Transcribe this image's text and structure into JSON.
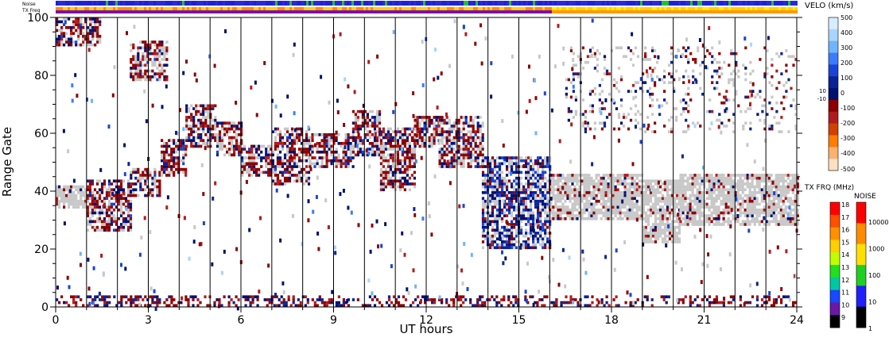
{
  "strips": {
    "noise_label": "Noise",
    "freq_label": "TX Freq",
    "noise_colors": [
      "#2020d8",
      "#2a2ad8",
      "#22c030"
    ],
    "freq_segments": [
      {
        "from": 0,
        "to": 16,
        "colors": [
          "#ffd000",
          "#ff8c00",
          "#7a10b0"
        ]
      },
      {
        "from": 16,
        "to": 24,
        "colors": [
          "#ffd000",
          "#ffee00",
          "#ff9900"
        ]
      }
    ]
  },
  "chart_data": {
    "type": "heatmap",
    "xlabel": "UT hours",
    "ylabel": "Range Gate",
    "xlim": [
      0,
      24
    ],
    "ylim": [
      0,
      100
    ],
    "x_ticks": [
      "0",
      "3",
      "6",
      "9",
      "12",
      "15",
      "18",
      "21",
      "24"
    ],
    "y_ticks": [
      "0",
      "20",
      "40",
      "60",
      "80",
      "100"
    ],
    "hour_gridlines": true,
    "ground_scatter_color": "#c8c8c8",
    "echo_bands": [
      {
        "t_start": 0.0,
        "t_end": 1.0,
        "gate_start": 34,
        "gate_end": 42,
        "class": "ground"
      },
      {
        "t_start": 1.0,
        "t_end": 2.4,
        "gate_start": 26,
        "gate_end": 44,
        "class": "mixed"
      },
      {
        "t_start": 2.4,
        "t_end": 3.4,
        "gate_start": 38,
        "gate_end": 48,
        "class": "mixed"
      },
      {
        "t_start": 3.4,
        "t_end": 4.2,
        "gate_start": 45,
        "gate_end": 58,
        "class": "mixed"
      },
      {
        "t_start": 4.2,
        "t_end": 5.2,
        "gate_start": 55,
        "gate_end": 70,
        "class": "mixed"
      },
      {
        "t_start": 5.2,
        "t_end": 6.0,
        "gate_start": 52,
        "gate_end": 64,
        "class": "mixed"
      },
      {
        "t_start": 6.0,
        "t_end": 7.0,
        "gate_start": 45,
        "gate_end": 56,
        "class": "mixed"
      },
      {
        "t_start": 7.0,
        "t_end": 8.2,
        "gate_start": 42,
        "gate_end": 62,
        "class": "mixed"
      },
      {
        "t_start": 8.2,
        "t_end": 9.6,
        "gate_start": 48,
        "gate_end": 60,
        "class": "mixed"
      },
      {
        "t_start": 9.6,
        "t_end": 10.5,
        "gate_start": 52,
        "gate_end": 68,
        "class": "mixed"
      },
      {
        "t_start": 10.5,
        "t_end": 11.6,
        "gate_start": 40,
        "gate_end": 62,
        "class": "mixed"
      },
      {
        "t_start": 11.6,
        "t_end": 12.4,
        "gate_start": 55,
        "gate_end": 66,
        "class": "mixed"
      },
      {
        "t_start": 12.4,
        "t_end": 13.8,
        "gate_start": 48,
        "gate_end": 66,
        "class": "mixed"
      },
      {
        "t_start": 13.8,
        "t_end": 16.0,
        "gate_start": 20,
        "gate_end": 52,
        "class": "neg"
      },
      {
        "t_start": 16.0,
        "t_end": 19.0,
        "gate_start": 30,
        "gate_end": 46,
        "class": "ground"
      },
      {
        "t_start": 19.0,
        "t_end": 20.2,
        "gate_start": 22,
        "gate_end": 44,
        "class": "ground"
      },
      {
        "t_start": 20.2,
        "t_end": 24.0,
        "gate_start": 28,
        "gate_end": 46,
        "class": "ground"
      },
      {
        "t_start": 0.0,
        "t_end": 24.0,
        "gate_start": 0,
        "gate_end": 4,
        "class": "near"
      },
      {
        "t_start": 0.0,
        "t_end": 1.4,
        "gate_start": 90,
        "gate_end": 100,
        "class": "mixed"
      },
      {
        "t_start": 2.4,
        "t_end": 3.6,
        "gate_start": 78,
        "gate_end": 92,
        "class": "mixed"
      },
      {
        "t_start": 16.5,
        "t_end": 24.0,
        "gate_start": 60,
        "gate_end": 90,
        "class": "sparse"
      }
    ],
    "velocity_scale": {
      "title": "VELO (km/s)",
      "ticks": [
        "500",
        "400",
        "300",
        "200",
        "100",
        "0",
        "10",
        "-10",
        "-100",
        "-200",
        "-300",
        "-400",
        "-500"
      ],
      "colors": [
        "#d6ecff",
        "#a8d4ff",
        "#6eb4ff",
        "#3a7cff",
        "#1a44d8",
        "#0a2296",
        "#001070",
        "#8c0000",
        "#b01c1c",
        "#d44000",
        "#ff7c00",
        "#ffb070",
        "#ffe0c0"
      ]
    },
    "freq_scale": {
      "title": "TX FRQ (MHz)",
      "ticks": [
        "18",
        "17",
        "16",
        "15",
        "14",
        "13",
        "12",
        "11",
        "10",
        "9"
      ],
      "colors": [
        "#ff0000",
        "#ff5000",
        "#ff9000",
        "#ffd000",
        "#c0ff00",
        "#20e020",
        "#00c8a0",
        "#1848ff",
        "#6a18a8",
        "#000000"
      ]
    },
    "noise_scale": {
      "title": "NOISE",
      "ticks": [
        "10000",
        "1000",
        "100",
        "10",
        "1"
      ],
      "colors": [
        "#ff0000",
        "#ff8c00",
        "#ffe000",
        "#20d020",
        "#2020ff",
        "#000000"
      ]
    }
  }
}
